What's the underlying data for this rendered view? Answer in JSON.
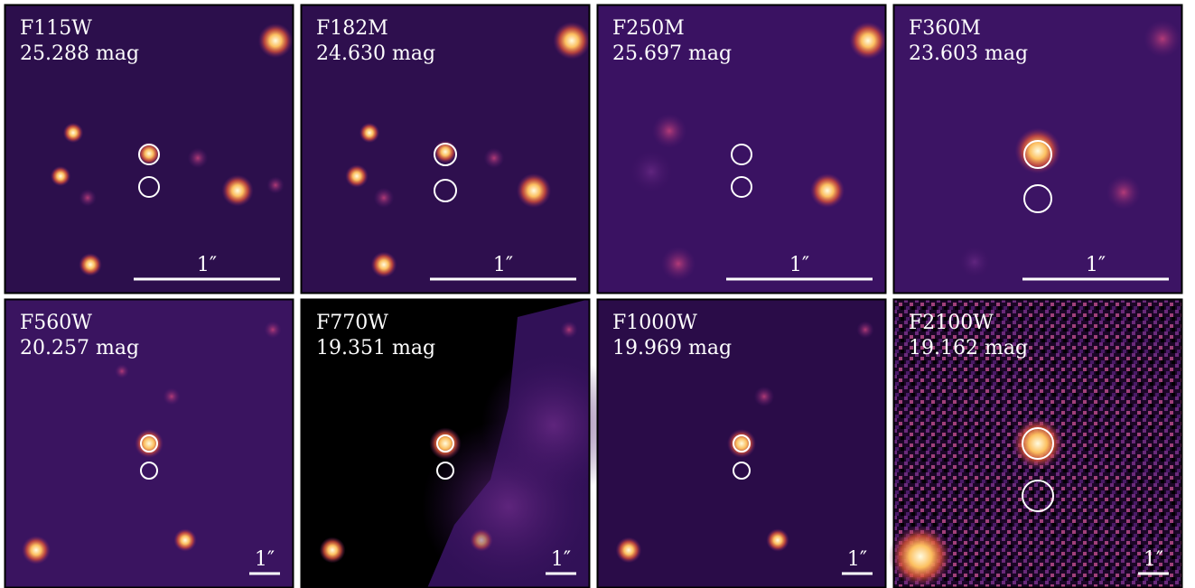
{
  "panels": [
    {
      "filter": "F115W",
      "mag": "25.288 mag",
      "scale": "1″"
    },
    {
      "filter": "F182M",
      "mag": "24.630 mag",
      "scale": "1″"
    },
    {
      "filter": "F250M",
      "mag": "25.697 mag",
      "scale": "1″"
    },
    {
      "filter": "F360M",
      "mag": "23.603 mag",
      "scale": "1″"
    },
    {
      "filter": "F560W",
      "mag": "20.257 mag",
      "scale": "1″"
    },
    {
      "filter": "F770W",
      "mag": "19.351 mag",
      "scale": "1″"
    },
    {
      "filter": "F1000W",
      "mag": "19.969 mag",
      "scale": "1″"
    },
    {
      "filter": "F2100W",
      "mag": "19.162 mag",
      "scale": "1″"
    }
  ]
}
